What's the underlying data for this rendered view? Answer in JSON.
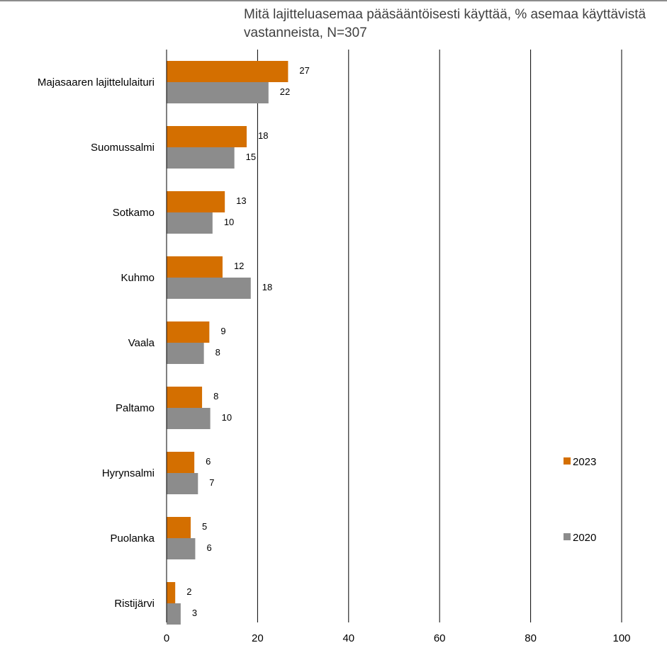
{
  "chart_data": {
    "type": "bar",
    "orientation": "horizontal",
    "title": "Mitä lajitteluasemaa pääsääntöisesti käyttää, % asemaa käyttävistä vastanneista, N=307",
    "categories": [
      "Majasaaren lajittelulaituri",
      "Suomussalmi",
      "Sotkamo",
      "Kuhmo",
      "Vaala",
      "Paltamo",
      "Hyrynsalmi",
      "Puolanka",
      "Ristijärvi"
    ],
    "series": [
      {
        "name": "2023",
        "color": "#d46f00",
        "values": [
          27,
          18,
          13,
          12,
          9,
          8,
          6,
          5,
          2
        ],
        "bar_values": [
          26.7,
          17.6,
          12.8,
          12.3,
          9.4,
          7.8,
          6.1,
          5.3,
          1.9
        ]
      },
      {
        "name": "2020",
        "color": "#8c8c8c",
        "values": [
          22,
          15,
          10,
          18,
          8,
          10,
          7,
          6,
          3
        ],
        "bar_values": [
          22.4,
          14.9,
          10.1,
          18.5,
          8.2,
          9.6,
          6.9,
          6.3,
          3.1
        ]
      }
    ],
    "xlim": [
      0,
      100
    ],
    "xticks": [
      0,
      20,
      40,
      60,
      80,
      100
    ],
    "grid": "vertical",
    "legend_position": "right"
  }
}
